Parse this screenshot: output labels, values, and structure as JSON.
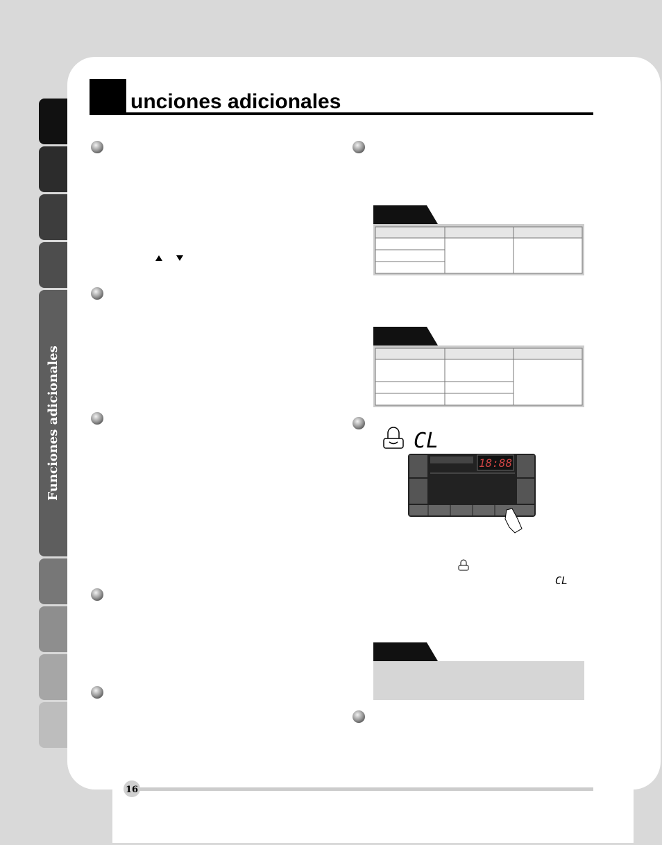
{
  "header": {
    "title": "unciones adicionales"
  },
  "side_tab": "Funciones adicionales",
  "display": {
    "time": "18:88",
    "lock_code": "CL"
  },
  "footer": {
    "page_number": "16"
  }
}
